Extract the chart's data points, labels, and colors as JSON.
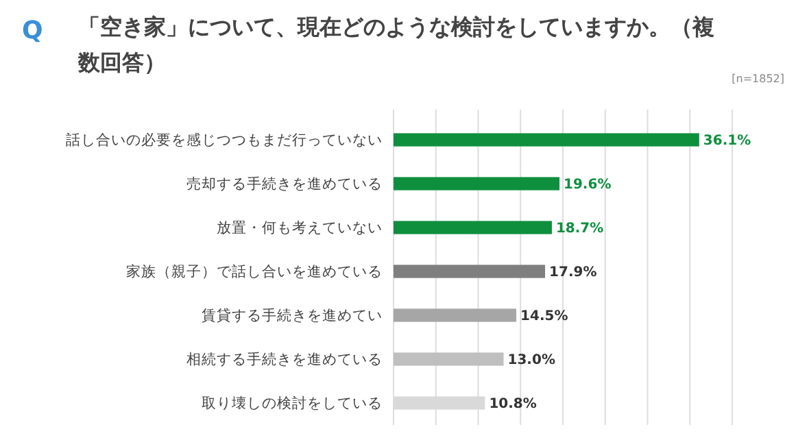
{
  "chart_data": {
    "type": "bar",
    "orientation": "horizontal",
    "title": "「空き家」について、現在どのような検討をしていますか。（複数回答）",
    "annotations": [
      "Q",
      "[n=1852]"
    ],
    "categories": [
      "話し合いの必要を感じつつもまだ行っていない",
      "売却する手続きを進めている",
      "放置・何も考えていない",
      "家族（親子）で話し合いを進めている",
      "賃貸する手続きを進めてい",
      "相続する手続きを進めている",
      "取り壊しの検討をしている"
    ],
    "values": [
      36.1,
      19.6,
      18.7,
      17.9,
      14.5,
      13.0,
      10.8
    ],
    "value_labels": [
      "36.1%",
      "19.6%",
      "18.7%",
      "17.9%",
      "14.5%",
      "13.0%",
      "10.8%"
    ],
    "colors": [
      "#0e8f3e",
      "#0e8f3e",
      "#0e8f3e",
      "#7f7f7f",
      "#a6a6a6",
      "#bfbfbf",
      "#d9d9d9"
    ],
    "xlim": [
      0,
      40
    ],
    "xticks": [
      {
        "value": 0,
        "label": null
      },
      {
        "value": 5,
        "label": null
      },
      {
        "value": 10,
        "label": null
      },
      {
        "value": 15,
        "label": null
      },
      {
        "value": 20,
        "label": null
      },
      {
        "value": 25,
        "label": null
      },
      {
        "value": 30,
        "label": null
      },
      {
        "value": 35,
        "label": null
      },
      {
        "value": 40,
        "label": null
      }
    ],
    "grid": "x",
    "tick_labels": "y"
  }
}
